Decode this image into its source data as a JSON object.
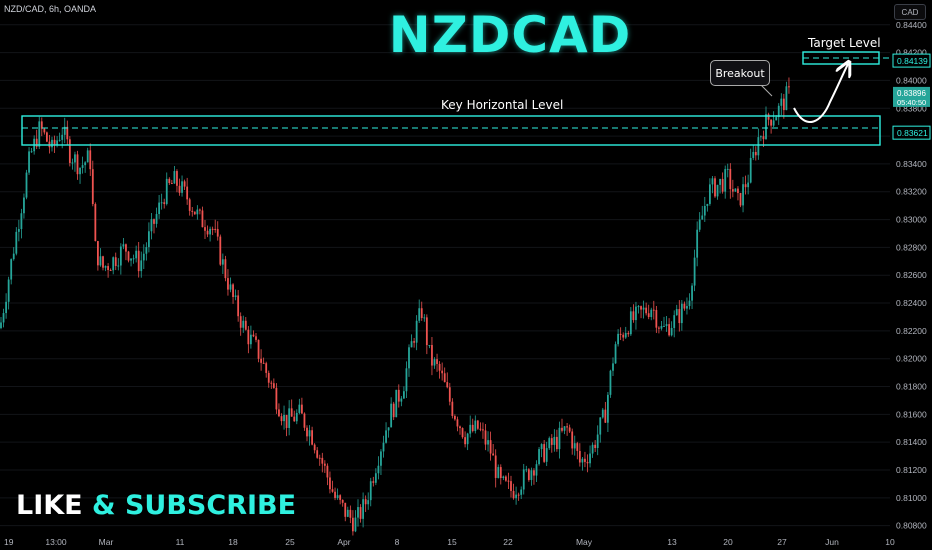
{
  "header": {
    "symbol": "NZD/CAD, 6h, OANDA",
    "currency_button": "CAD"
  },
  "title": "NZDCAD",
  "promo": {
    "part1": "LIKE",
    "amp": "&",
    "part2": "SUBSCRIBE"
  },
  "annotations": {
    "key_level": "Key Horizontal Level",
    "breakout": "Breakout",
    "target": "Target Level"
  },
  "colors": {
    "up": "#26a69a",
    "down": "#ef5350",
    "accent": "#2ff0e0",
    "background": "#000000"
  },
  "chart_data": {
    "type": "candlestick",
    "ylim": [
      0.8074,
      0.8442
    ],
    "y_ticks": [
      "0.84400",
      "0.84200",
      "0.84000",
      "0.83800",
      "0.83600",
      "0.83400",
      "0.83200",
      "0.83000",
      "0.82800",
      "0.82600",
      "0.82400",
      "0.82200",
      "0.82000",
      "0.81800",
      "0.81600",
      "0.81400",
      "0.81200",
      "0.81000",
      "0.80800"
    ],
    "x_ticks": [
      "19",
      "13:00",
      "Mar",
      "11",
      "18",
      "25",
      "Apr",
      "8",
      "15",
      "22",
      "May",
      "13",
      "20",
      "27",
      "Jun",
      "10"
    ],
    "price_labels": {
      "target": "0.84139",
      "key_level": "0.83621",
      "current_price": "0.83896",
      "countdown": "05:40:50"
    },
    "key_level_zone": [
      0.835,
      0.8376
    ],
    "target_level": 0.84139,
    "key_level": 0.83621,
    "current_price": 0.83896,
    "path": [
      {
        "x": 0,
        "y": 0.8222
      },
      {
        "x": 15,
        "y": 0.8285
      },
      {
        "x": 30,
        "y": 0.8345
      },
      {
        "x": 40,
        "y": 0.8366
      },
      {
        "x": 52,
        "y": 0.835
      },
      {
        "x": 62,
        "y": 0.8365
      },
      {
        "x": 70,
        "y": 0.8348
      },
      {
        "x": 80,
        "y": 0.8338
      },
      {
        "x": 90,
        "y": 0.8345
      },
      {
        "x": 95,
        "y": 0.828
      },
      {
        "x": 102,
        "y": 0.8265
      },
      {
        "x": 112,
        "y": 0.827
      },
      {
        "x": 125,
        "y": 0.828
      },
      {
        "x": 140,
        "y": 0.8268
      },
      {
        "x": 155,
        "y": 0.83
      },
      {
        "x": 165,
        "y": 0.832
      },
      {
        "x": 175,
        "y": 0.8328
      },
      {
        "x": 188,
        "y": 0.8315
      },
      {
        "x": 200,
        "y": 0.83
      },
      {
        "x": 212,
        "y": 0.8295
      },
      {
        "x": 222,
        "y": 0.827
      },
      {
        "x": 232,
        "y": 0.8245
      },
      {
        "x": 245,
        "y": 0.822
      },
      {
        "x": 258,
        "y": 0.8205
      },
      {
        "x": 272,
        "y": 0.818
      },
      {
        "x": 285,
        "y": 0.8155
      },
      {
        "x": 300,
        "y": 0.816
      },
      {
        "x": 312,
        "y": 0.8145
      },
      {
        "x": 325,
        "y": 0.812
      },
      {
        "x": 335,
        "y": 0.81
      },
      {
        "x": 345,
        "y": 0.809
      },
      {
        "x": 355,
        "y": 0.8082
      },
      {
        "x": 365,
        "y": 0.8095
      },
      {
        "x": 378,
        "y": 0.813
      },
      {
        "x": 390,
        "y": 0.816
      },
      {
        "x": 403,
        "y": 0.818
      },
      {
        "x": 413,
        "y": 0.8215
      },
      {
        "x": 422,
        "y": 0.8235
      },
      {
        "x": 430,
        "y": 0.82
      },
      {
        "x": 440,
        "y": 0.819
      },
      {
        "x": 452,
        "y": 0.8165
      },
      {
        "x": 465,
        "y": 0.8145
      },
      {
        "x": 478,
        "y": 0.815
      },
      {
        "x": 490,
        "y": 0.8135
      },
      {
        "x": 500,
        "y": 0.811
      },
      {
        "x": 512,
        "y": 0.8105
      },
      {
        "x": 525,
        "y": 0.8115
      },
      {
        "x": 540,
        "y": 0.813
      },
      {
        "x": 555,
        "y": 0.814
      },
      {
        "x": 568,
        "y": 0.815
      },
      {
        "x": 580,
        "y": 0.8125
      },
      {
        "x": 592,
        "y": 0.8135
      },
      {
        "x": 605,
        "y": 0.816
      },
      {
        "x": 615,
        "y": 0.821
      },
      {
        "x": 628,
        "y": 0.8225
      },
      {
        "x": 640,
        "y": 0.8232
      },
      {
        "x": 652,
        "y": 0.8238
      },
      {
        "x": 662,
        "y": 0.822
      },
      {
        "x": 675,
        "y": 0.8228
      },
      {
        "x": 688,
        "y": 0.824
      },
      {
        "x": 698,
        "y": 0.829
      },
      {
        "x": 708,
        "y": 0.832
      },
      {
        "x": 718,
        "y": 0.8325
      },
      {
        "x": 728,
        "y": 0.833
      },
      {
        "x": 738,
        "y": 0.8312
      },
      {
        "x": 748,
        "y": 0.833
      },
      {
        "x": 758,
        "y": 0.8358
      },
      {
        "x": 768,
        "y": 0.8372
      },
      {
        "x": 778,
        "y": 0.8378
      },
      {
        "x": 788,
        "y": 0.839
      }
    ]
  }
}
